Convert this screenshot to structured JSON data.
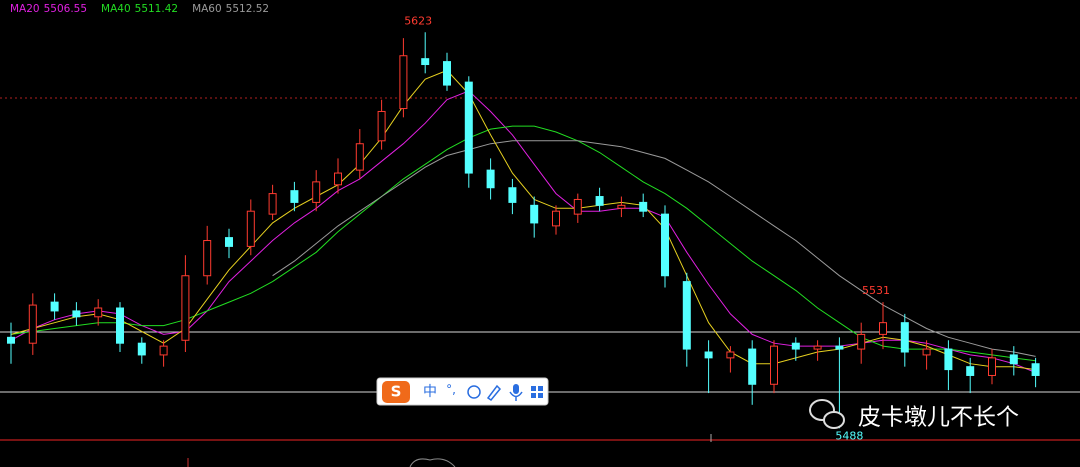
{
  "chart_data": {
    "type": "candlestick",
    "ylim": [
      5484,
      5634
    ],
    "up_color": "#ff3b30",
    "down_color": "#54ffff",
    "open": [
      5519,
      5517,
      5531,
      5528,
      5526,
      5529,
      5517,
      5513,
      5518,
      5540,
      5553,
      5550,
      5561,
      5569,
      5565,
      5571,
      5576,
      5586,
      5597,
      5614,
      5613,
      5606,
      5576,
      5570,
      5564,
      5557,
      5561,
      5567,
      5563,
      5565,
      5561,
      5538,
      5514,
      5512,
      5515,
      5503,
      5517,
      5515,
      5516,
      5515,
      5520,
      5524,
      5513,
      5515,
      5509,
      5506,
      5513,
      5510
    ],
    "high": [
      5524,
      5534,
      5534,
      5531,
      5532,
      5531,
      5519,
      5518,
      5547,
      5557,
      5556,
      5566,
      5571,
      5572,
      5576,
      5580,
      5590,
      5600,
      5621,
      5623,
      5616,
      5608,
      5580,
      5573,
      5567,
      5564,
      5568,
      5570,
      5567,
      5568,
      5564,
      5541,
      5518,
      5516,
      5518,
      5518,
      5519,
      5518,
      5519,
      5524,
      5531,
      5527,
      5518,
      5518,
      5512,
      5515,
      5516,
      5512
    ],
    "low": [
      5510,
      5513,
      5525,
      5523,
      5523,
      5514,
      5510,
      5509,
      5514,
      5537,
      5546,
      5547,
      5559,
      5562,
      5562,
      5568,
      5573,
      5583,
      5594,
      5609,
      5603,
      5570,
      5566,
      5561,
      5553,
      5554,
      5558,
      5562,
      5560,
      5560,
      5536,
      5509,
      5500,
      5507,
      5496,
      5500,
      5511,
      5511,
      5488,
      5510,
      5515,
      5509,
      5508,
      5501,
      5500,
      5503,
      5506,
      5502
    ],
    "close": [
      5517,
      5530,
      5528,
      5526,
      5529,
      5517,
      5513,
      5516,
      5540,
      5552,
      5550,
      5562,
      5568,
      5565,
      5572,
      5575,
      5585,
      5596,
      5615,
      5612,
      5605,
      5575,
      5570,
      5565,
      5558,
      5562,
      5566,
      5564,
      5564,
      5562,
      5540,
      5515,
      5512,
      5514,
      5503,
      5516,
      5515,
      5516,
      5515,
      5520,
      5524,
      5514,
      5515,
      5508,
      5506,
      5512,
      5510,
      5506
    ],
    "series": [
      {
        "name": "MA20",
        "current": "5506.55",
        "color": "#e020e0",
        "values": [
          5518,
          5522,
          5525,
          5527,
          5528,
          5527,
          5523,
          5520,
          5521,
          5528,
          5538,
          5545,
          5552,
          5558,
          5563,
          5569,
          5573,
          5579,
          5585,
          5592,
          5600,
          5603,
          5596,
          5588,
          5578,
          5568,
          5562,
          5562,
          5563,
          5563,
          5560,
          5548,
          5537,
          5527,
          5520,
          5517,
          5516,
          5516,
          5516,
          5517,
          5518,
          5518,
          5517,
          5515,
          5513,
          5512,
          5510,
          5507
        ]
      },
      {
        "name": "MA40",
        "current": "5511.42",
        "color": "#22dd22",
        "values": [
          5520,
          5521,
          5522,
          5523,
          5524,
          5524,
          5523,
          5523,
          5525,
          5528,
          5531,
          5534,
          5538,
          5543,
          5548,
          5555,
          5561,
          5567,
          5573,
          5578,
          5583,
          5587,
          5590,
          5591,
          5591,
          5589,
          5586,
          5582,
          5577,
          5572,
          5568,
          5563,
          5557,
          5551,
          5545,
          5540,
          5535,
          5529,
          5524,
          5519,
          5516,
          5515,
          5515,
          5515,
          5514,
          5513,
          5512,
          5511
        ]
      },
      {
        "name": "MA60",
        "current": "5512.52",
        "color": "#9a9a9a",
        "values": [
          null,
          null,
          null,
          null,
          null,
          null,
          null,
          null,
          null,
          null,
          null,
          null,
          5540,
          5545,
          5551,
          5557,
          5562,
          5567,
          5572,
          5577,
          5581,
          5583,
          5585,
          5586,
          5586,
          5586,
          5586,
          5585,
          5584,
          5582,
          5580,
          5576,
          5572,
          5567,
          5562,
          5557,
          5552,
          5546,
          5540,
          5535,
          5530,
          5526,
          5522,
          5519,
          5517,
          5515,
          5514,
          5512.5
        ]
      },
      {
        "color": "#e6d020",
        "values": [
          5520,
          5522,
          5524,
          5526,
          5527,
          5525,
          5521,
          5517,
          5522,
          5532,
          5542,
          5550,
          5558,
          5563,
          5567,
          5571,
          5578,
          5587,
          5598,
          5607,
          5610,
          5602,
          5588,
          5575,
          5566,
          5563,
          5563,
          5564,
          5565,
          5564,
          5556,
          5540,
          5524,
          5514,
          5510,
          5510,
          5512,
          5514,
          5515,
          5517,
          5519,
          5518,
          5516,
          5513,
          5510,
          5509,
          5509,
          5508
        ]
      }
    ]
  },
  "ime": {
    "logo": "S",
    "items": [
      "中",
      "°,"
    ]
  },
  "watermark": "皮卡墩儿不长个"
}
